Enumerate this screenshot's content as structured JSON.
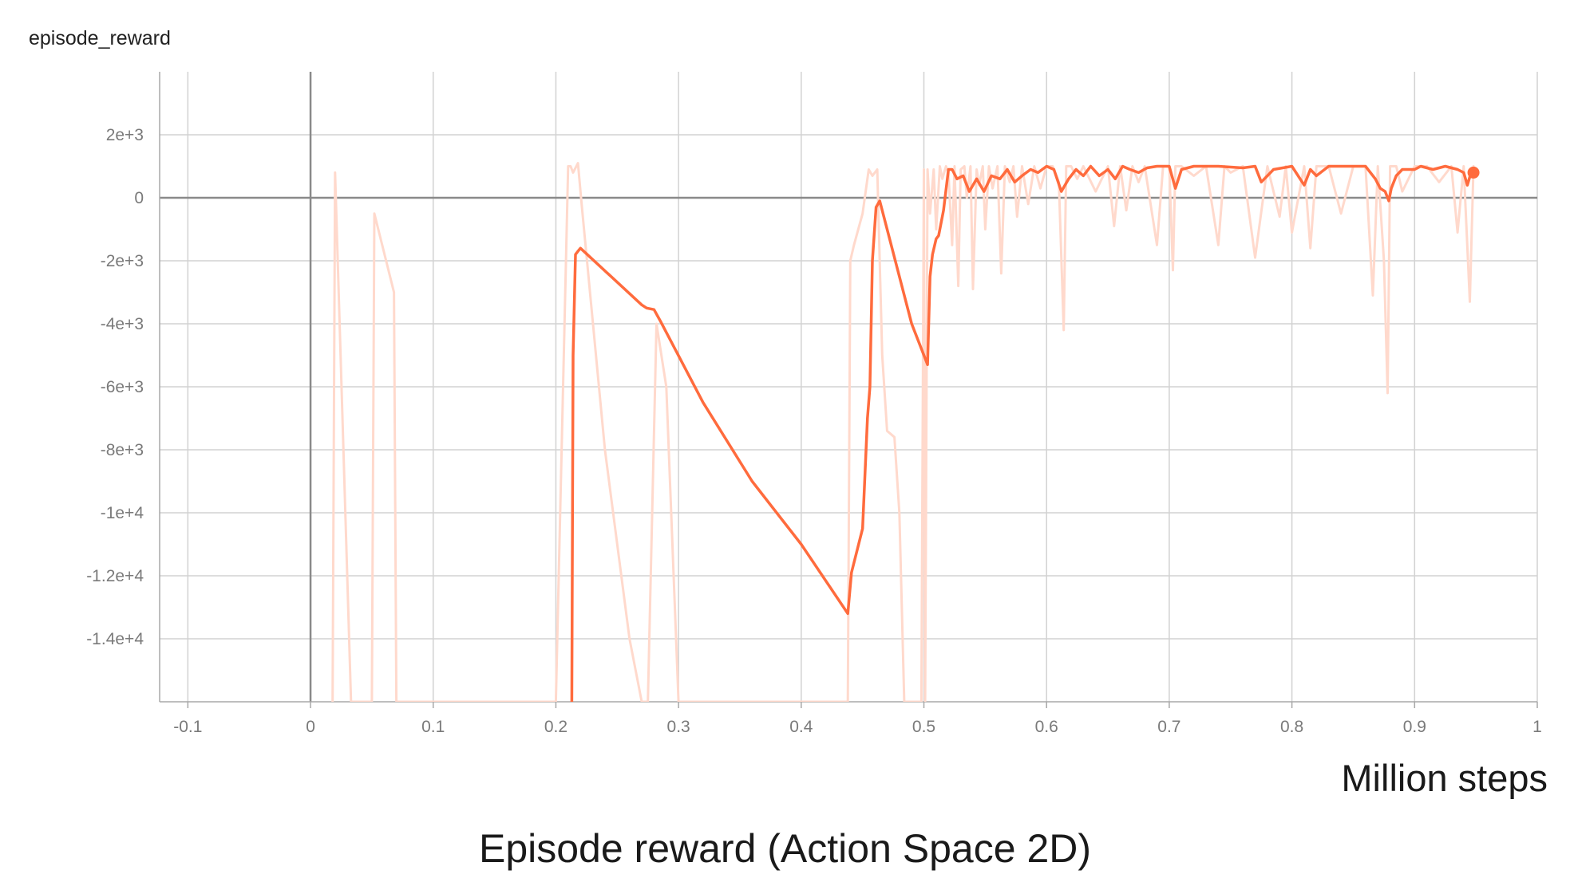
{
  "chart_data": {
    "type": "line",
    "title": "episode_reward",
    "xlabel": "Million steps",
    "caption": "Episode reward (Action Space 2D)",
    "x_ticks": [
      "-0.1",
      "0",
      "0.1",
      "0.2",
      "0.3",
      "0.4",
      "0.5",
      "0.6",
      "0.7",
      "0.8",
      "0.9",
      "1"
    ],
    "y_ticks": [
      "2e+3",
      "0",
      "-2e+3",
      "-4e+3",
      "-6e+3",
      "-8e+3",
      "-1e+4",
      "-1.2e+4",
      "-1.4e+4"
    ],
    "xlim": [
      -0.123,
      1.0
    ],
    "ylim": [
      -16000,
      4000
    ],
    "grid": true,
    "colors": {
      "smoothed": "#ff6b3d",
      "raw": "#ffd9cc",
      "axis": "#8a8a8a",
      "grid": "#d2d2d2"
    },
    "series": [
      {
        "role": "raw",
        "x": [
          0.018,
          0.02,
          0.033,
          0.035,
          0.05,
          0.052,
          0.068,
          0.07,
          0.2,
          0.21,
          0.212,
          0.214,
          0.218,
          0.221,
          0.24,
          0.26,
          0.27,
          0.272,
          0.275,
          0.282,
          0.29,
          0.3,
          0.302,
          0.438,
          0.44,
          0.443,
          0.45,
          0.455,
          0.458,
          0.462,
          0.466,
          0.47,
          0.476,
          0.48,
          0.484,
          0.486,
          0.498,
          0.5,
          0.501,
          0.503,
          0.505,
          0.508,
          0.51,
          0.513,
          0.515,
          0.518,
          0.52,
          0.523,
          0.525,
          0.528,
          0.53,
          0.533,
          0.535,
          0.538,
          0.54,
          0.543,
          0.545,
          0.548,
          0.55,
          0.553,
          0.556,
          0.56,
          0.563,
          0.566,
          0.57,
          0.573,
          0.576,
          0.58,
          0.585,
          0.59,
          0.595,
          0.6,
          0.605,
          0.61,
          0.614,
          0.616,
          0.62,
          0.625,
          0.63,
          0.64,
          0.65,
          0.655,
          0.66,
          0.665,
          0.67,
          0.675,
          0.68,
          0.69,
          0.695,
          0.7,
          0.703,
          0.705,
          0.71,
          0.72,
          0.73,
          0.74,
          0.745,
          0.75,
          0.76,
          0.77,
          0.78,
          0.79,
          0.795,
          0.8,
          0.81,
          0.815,
          0.82,
          0.83,
          0.84,
          0.85,
          0.86,
          0.866,
          0.87,
          0.875,
          0.878,
          0.88,
          0.885,
          0.89,
          0.9,
          0.91,
          0.92,
          0.93,
          0.935,
          0.94,
          0.945,
          0.948
        ],
        "y": [
          -16000,
          800,
          -16000,
          -16000,
          -16000,
          -500,
          -3000,
          -16000,
          -16000,
          1000,
          1000,
          800,
          1100,
          -200,
          -8000,
          -14000,
          -16000,
          -16000,
          -16000,
          -4000,
          -6000,
          -16000,
          -16000,
          -16000,
          -2000,
          -1500,
          -500,
          900,
          700,
          900,
          -5000,
          -7400,
          -7600,
          -10000,
          -16000,
          -16000,
          -16000,
          900,
          -16000,
          900,
          -500,
          900,
          -1000,
          1000,
          600,
          1000,
          800,
          -1500,
          1000,
          -2800,
          900,
          1000,
          0,
          1000,
          -2900,
          900,
          400,
          1000,
          -1000,
          1000,
          300,
          1000,
          -2400,
          1000,
          500,
          1000,
          -600,
          1000,
          -200,
          1000,
          300,
          1000,
          1000,
          500,
          -4200,
          1000,
          1000,
          600,
          1000,
          200,
          1000,
          -900,
          1000,
          -400,
          1000,
          500,
          1000,
          -1500,
          1000,
          1000,
          -2300,
          1000,
          1000,
          700,
          1000,
          -1500,
          1000,
          800,
          1000,
          -1900,
          1000,
          -600,
          1000,
          -1100,
          1000,
          -1600,
          1000,
          1000,
          -500,
          1000,
          1000,
          -3100,
          1000,
          -2000,
          -6200,
          1000,
          1000,
          200,
          1000,
          1000,
          500,
          1000,
          -1100,
          1000,
          -3300,
          1000
        ]
      },
      {
        "role": "smoothed",
        "x": [
          0.213,
          0.214,
          0.216,
          0.218,
          0.22,
          0.27,
          0.274,
          0.28,
          0.285,
          0.32,
          0.36,
          0.4,
          0.438,
          0.441,
          0.45,
          0.454,
          0.456,
          0.458,
          0.461,
          0.464,
          0.49,
          0.503,
          0.505,
          0.507,
          0.51,
          0.512,
          0.516,
          0.52,
          0.523,
          0.527,
          0.532,
          0.537,
          0.543,
          0.549,
          0.555,
          0.562,
          0.568,
          0.574,
          0.58,
          0.587,
          0.593,
          0.6,
          0.606,
          0.612,
          0.618,
          0.624,
          0.63,
          0.636,
          0.643,
          0.65,
          0.656,
          0.662,
          0.668,
          0.675,
          0.682,
          0.69,
          0.7,
          0.705,
          0.71,
          0.72,
          0.74,
          0.76,
          0.77,
          0.775,
          0.785,
          0.8,
          0.81,
          0.815,
          0.82,
          0.83,
          0.84,
          0.85,
          0.86,
          0.868,
          0.872,
          0.876,
          0.879,
          0.881,
          0.885,
          0.89,
          0.9,
          0.905,
          0.915,
          0.925,
          0.935,
          0.94,
          0.943,
          0.946,
          0.948
        ],
        "y": [
          -16000,
          -5000,
          -1800,
          -1700,
          -1600,
          -3400,
          -3500,
          -3550,
          -3900,
          -6500,
          -9000,
          -11000,
          -13200,
          -11900,
          -10500,
          -7000,
          -6000,
          -2000,
          -300,
          -100,
          -4000,
          -5300,
          -2500,
          -1800,
          -1300,
          -1200,
          -400,
          900,
          900,
          600,
          700,
          200,
          600,
          200,
          700,
          600,
          900,
          500,
          700,
          900,
          800,
          1000,
          900,
          200,
          600,
          900,
          700,
          1000,
          700,
          900,
          600,
          1000,
          900,
          800,
          950,
          1000,
          1000,
          300,
          900,
          1000,
          1000,
          950,
          1000,
          500,
          900,
          1000,
          400,
          900,
          700,
          1000,
          1000,
          1000,
          1000,
          600,
          300,
          200,
          -100,
          300,
          700,
          900,
          900,
          1000,
          900,
          1000,
          900,
          800,
          400,
          800,
          800
        ]
      }
    ]
  }
}
